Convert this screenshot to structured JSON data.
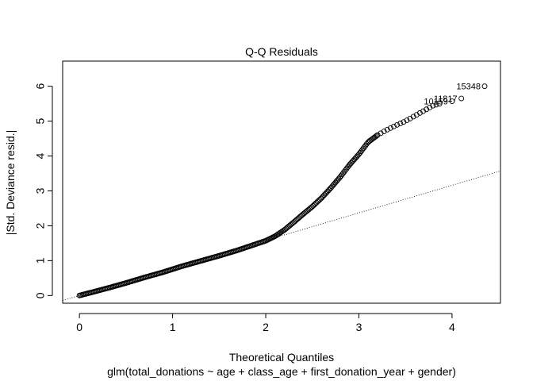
{
  "chart_data": {
    "type": "scatter",
    "title": "Q-Q Residuals",
    "xlabel": "Theoretical Quantiles",
    "ylabel": "|Std. Deviance resid.|",
    "subtitle": "glm(total_donations ~ age + class_age + first_donation_year + gender)",
    "xlim": [
      -0.18,
      4.52
    ],
    "ylim": [
      -0.22,
      6.72
    ],
    "x_ticks": [
      0,
      1,
      2,
      3,
      4
    ],
    "y_ticks": [
      0,
      1,
      2,
      3,
      4,
      5,
      6
    ],
    "grid": false,
    "reference_line": {
      "slope": 0.79,
      "intercept": 0.0
    },
    "curve_points": [
      [
        0.0,
        0.0
      ],
      [
        0.1,
        0.07
      ],
      [
        0.3,
        0.21
      ],
      [
        0.5,
        0.36
      ],
      [
        0.7,
        0.52
      ],
      [
        0.9,
        0.67
      ],
      [
        1.1,
        0.84
      ],
      [
        1.3,
        0.99
      ],
      [
        1.5,
        1.14
      ],
      [
        1.7,
        1.3
      ],
      [
        1.9,
        1.48
      ],
      [
        2.0,
        1.57
      ],
      [
        2.1,
        1.7
      ],
      [
        2.2,
        1.88
      ],
      [
        2.3,
        2.1
      ],
      [
        2.4,
        2.33
      ],
      [
        2.5,
        2.55
      ],
      [
        2.6,
        2.8
      ],
      [
        2.7,
        3.09
      ],
      [
        2.8,
        3.4
      ],
      [
        2.9,
        3.75
      ],
      [
        3.0,
        4.05
      ],
      [
        3.1,
        4.4
      ],
      [
        3.2,
        4.6
      ],
      [
        3.3,
        4.75
      ],
      [
        3.4,
        4.88
      ],
      [
        3.5,
        5.0
      ],
      [
        3.6,
        5.15
      ],
      [
        3.7,
        5.3
      ],
      [
        3.8,
        5.45
      ],
      [
        3.9,
        5.52
      ],
      [
        4.0,
        5.57
      ],
      [
        4.1,
        5.65
      ],
      [
        4.35,
        6.0
      ]
    ],
    "labeled_points": [
      {
        "x": 4.35,
        "y": 6.0,
        "label": "15348"
      },
      {
        "x": 4.1,
        "y": 5.65,
        "label": "11817"
      },
      {
        "x": 4.0,
        "y": 5.57,
        "label": "10159"
      }
    ]
  }
}
